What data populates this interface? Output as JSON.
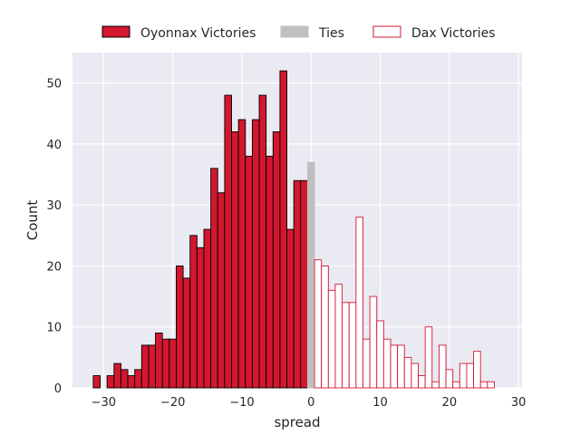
{
  "chart_data": {
    "type": "bar",
    "subtype": "histogram",
    "xlabel": "spread",
    "ylabel": "Count",
    "xlim": [
      -34.5,
      30.5
    ],
    "ylim": [
      0,
      55
    ],
    "x_ticks": [
      -30,
      -20,
      -10,
      0,
      10,
      20,
      30
    ],
    "y_ticks": [
      0,
      10,
      20,
      30,
      40,
      50
    ],
    "x_tick_labels": [
      "−30",
      "−20",
      "−10",
      "0",
      "10",
      "20",
      "30"
    ],
    "y_tick_labels": [
      "0",
      "10",
      "20",
      "30",
      "40",
      "50"
    ],
    "grid": true,
    "legend_position": "top-center",
    "bin_width": 1,
    "series": [
      {
        "name": "Oyonnax Victories",
        "fill": "#d2172f",
        "edge": "#000000",
        "bins": [
          {
            "x": -31,
            "count": 2
          },
          {
            "x": -30,
            "count": 0
          },
          {
            "x": -29,
            "count": 2
          },
          {
            "x": -28,
            "count": 4
          },
          {
            "x": -27,
            "count": 3
          },
          {
            "x": -26,
            "count": 2
          },
          {
            "x": -25,
            "count": 3
          },
          {
            "x": -24,
            "count": 7
          },
          {
            "x": -23,
            "count": 7
          },
          {
            "x": -22,
            "count": 9
          },
          {
            "x": -21,
            "count": 8
          },
          {
            "x": -20,
            "count": 8
          },
          {
            "x": -19,
            "count": 20
          },
          {
            "x": -18,
            "count": 18
          },
          {
            "x": -17,
            "count": 25
          },
          {
            "x": -16,
            "count": 23
          },
          {
            "x": -15,
            "count": 26
          },
          {
            "x": -14,
            "count": 36
          },
          {
            "x": -13,
            "count": 32
          },
          {
            "x": -12,
            "count": 48
          },
          {
            "x": -11,
            "count": 42
          },
          {
            "x": -10,
            "count": 44
          },
          {
            "x": -9,
            "count": 38
          },
          {
            "x": -8,
            "count": 44
          },
          {
            "x": -7,
            "count": 48
          },
          {
            "x": -6,
            "count": 38
          },
          {
            "x": -5,
            "count": 42
          },
          {
            "x": -4,
            "count": 52
          },
          {
            "x": -3,
            "count": 26
          },
          {
            "x": -2,
            "count": 34
          },
          {
            "x": -1,
            "count": 34
          }
        ]
      },
      {
        "name": "Ties",
        "fill": "#bfbfbf",
        "edge": "#bfbfbf",
        "bins": [
          {
            "x": 0,
            "count": 37
          }
        ]
      },
      {
        "name": "Dax Victories",
        "fill": "#ffffff",
        "edge": "#d2172f",
        "bins": [
          {
            "x": 1,
            "count": 21
          },
          {
            "x": 2,
            "count": 20
          },
          {
            "x": 3,
            "count": 16
          },
          {
            "x": 4,
            "count": 17
          },
          {
            "x": 5,
            "count": 14
          },
          {
            "x": 6,
            "count": 14
          },
          {
            "x": 7,
            "count": 28
          },
          {
            "x": 8,
            "count": 8
          },
          {
            "x": 9,
            "count": 15
          },
          {
            "x": 10,
            "count": 11
          },
          {
            "x": 11,
            "count": 8
          },
          {
            "x": 12,
            "count": 7
          },
          {
            "x": 13,
            "count": 7
          },
          {
            "x": 14,
            "count": 5
          },
          {
            "x": 15,
            "count": 4
          },
          {
            "x": 16,
            "count": 2
          },
          {
            "x": 17,
            "count": 10
          },
          {
            "x": 18,
            "count": 1
          },
          {
            "x": 19,
            "count": 7
          },
          {
            "x": 20,
            "count": 3
          },
          {
            "x": 21,
            "count": 1
          },
          {
            "x": 22,
            "count": 4
          },
          {
            "x": 23,
            "count": 4
          },
          {
            "x": 24,
            "count": 6
          },
          {
            "x": 25,
            "count": 1
          },
          {
            "x": 26,
            "count": 1
          }
        ]
      }
    ]
  }
}
